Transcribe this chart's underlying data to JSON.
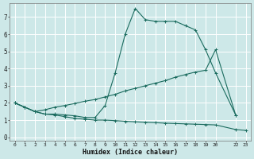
{
  "xlabel": "Humidex (Indice chaleur)",
  "bg_color": "#cde8e8",
  "grid_color": "#ffffff",
  "line_color": "#1a6b5e",
  "xlim": [
    -0.5,
    23.5
  ],
  "ylim": [
    -0.2,
    7.8
  ],
  "xticks": [
    0,
    1,
    2,
    3,
    4,
    5,
    6,
    7,
    8,
    9,
    10,
    11,
    12,
    13,
    14,
    15,
    16,
    17,
    18,
    19,
    20,
    22,
    23
  ],
  "xtick_labels": [
    "0",
    "1",
    "2",
    "3",
    "4",
    "5",
    "6",
    "7",
    "8",
    "9",
    "10",
    "11",
    "12",
    "13",
    "14",
    "15",
    "16",
    "17",
    "18",
    "19",
    "20",
    "22",
    "23"
  ],
  "yticks": [
    0,
    1,
    2,
    3,
    4,
    5,
    6,
    7
  ],
  "line1_x": [
    0,
    1,
    2,
    3,
    4,
    5,
    6,
    7,
    8,
    9,
    10,
    11,
    12,
    13,
    14,
    15,
    16,
    17,
    18,
    19,
    20,
    22
  ],
  "line1_y": [
    2.0,
    1.75,
    1.5,
    1.35,
    1.35,
    1.3,
    1.25,
    1.15,
    1.15,
    1.85,
    3.75,
    6.0,
    7.5,
    6.85,
    6.75,
    6.75,
    6.75,
    6.5,
    6.25,
    5.1,
    3.75,
    1.3
  ],
  "line2_x": [
    0,
    1,
    2,
    3,
    4,
    5,
    6,
    7,
    8,
    9,
    10,
    11,
    12,
    13,
    14,
    15,
    16,
    17,
    18,
    19,
    20,
    22
  ],
  "line2_y": [
    2.0,
    1.75,
    1.5,
    1.6,
    1.75,
    1.85,
    1.97,
    2.1,
    2.2,
    2.35,
    2.5,
    2.7,
    2.85,
    3.0,
    3.15,
    3.3,
    3.5,
    3.65,
    3.8,
    3.9,
    5.1,
    1.3
  ],
  "line3_x": [
    0,
    1,
    2,
    3,
    4,
    5,
    6,
    7,
    8,
    9,
    10,
    11,
    12,
    13,
    14,
    15,
    16,
    17,
    18,
    19,
    20,
    22,
    23
  ],
  "line3_y": [
    2.0,
    1.75,
    1.5,
    1.35,
    1.3,
    1.2,
    1.1,
    1.05,
    1.0,
    1.0,
    0.97,
    0.93,
    0.9,
    0.87,
    0.85,
    0.82,
    0.8,
    0.78,
    0.76,
    0.74,
    0.72,
    0.45,
    0.4
  ]
}
